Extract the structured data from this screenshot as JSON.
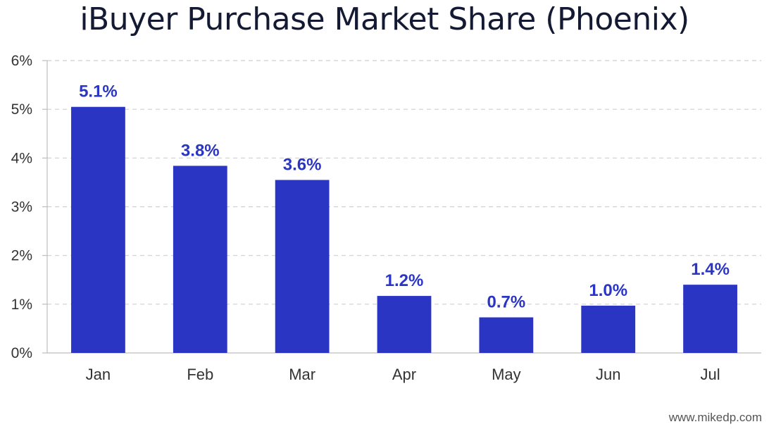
{
  "chart_data": {
    "type": "bar",
    "title": "iBuyer Purchase Market Share (Phoenix)",
    "categories": [
      "Jan",
      "Feb",
      "Mar",
      "Apr",
      "May",
      "Jun",
      "Jul"
    ],
    "values": [
      5.05,
      3.84,
      3.55,
      1.17,
      0.73,
      0.97,
      1.4
    ],
    "data_labels": [
      "5.1%",
      "3.8%",
      "3.6%",
      "1.2%",
      "0.7%",
      "1.0%",
      "1.4%"
    ],
    "y_ticks": [
      "0%",
      "1%",
      "2%",
      "3%",
      "4%",
      "5%",
      "6%"
    ],
    "xlabel": "",
    "ylabel": "",
    "ylim": [
      0,
      6
    ],
    "grid": true,
    "bar_color": "#2a35c4",
    "label_color": "#2a35c4"
  },
  "footer": {
    "source": "www.mikedp.com"
  }
}
